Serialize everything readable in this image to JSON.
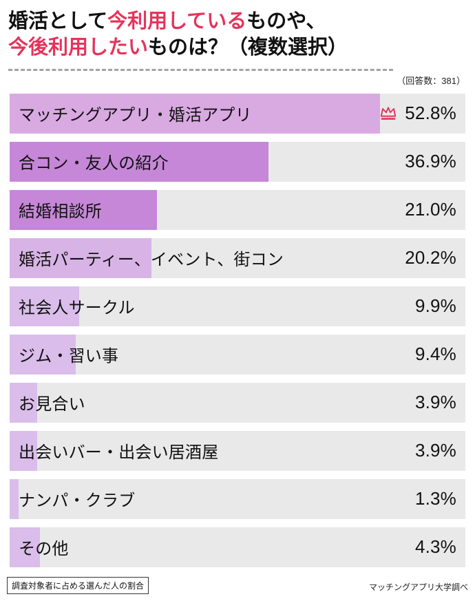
{
  "colors": {
    "accent": "#e5345b",
    "track": "#e9e9ea",
    "text": "#111111"
  },
  "title": {
    "line1": [
      {
        "text": "婚活として",
        "accent": false
      },
      {
        "text": "今利用している",
        "accent": true
      },
      {
        "text": "ものや、",
        "accent": false
      }
    ],
    "line2": [
      {
        "text": "今後利用したい",
        "accent": true
      },
      {
        "text": "ものは？（複数選択）",
        "accent": false
      }
    ]
  },
  "respondents_note": "（回答数：381）",
  "chart_data": {
    "type": "bar",
    "orientation": "horizontal",
    "title": "婚活として今利用しているものや、今後利用したいものは？（複数選択）",
    "respondents": 381,
    "axis_max": 65,
    "categories": [
      "マッチングアプリ・婚活アプリ",
      "合コン・友人の紹介",
      "結婚相談所",
      "婚活パーティー、イベント、街コン",
      "社会人サークル",
      "ジム・習い事",
      "お見合い",
      "出会いバー・出会い居酒屋",
      "ナンパ・クラブ",
      "その他"
    ],
    "values": [
      52.8,
      36.9,
      21.0,
      20.2,
      9.9,
      9.4,
      3.9,
      3.9,
      1.3,
      4.3
    ],
    "value_labels": [
      "52.8%",
      "36.9%",
      "21.0%",
      "20.2%",
      "9.9%",
      "9.4%",
      "3.9%",
      "3.9%",
      "1.3%",
      "4.3%"
    ],
    "bar_fills": [
      "#d9a9e2",
      "#c687d8",
      "#c687d8",
      "#d8b4e6",
      "#dabdea",
      "#dabdea",
      "#dabdea",
      "#dabdea",
      "#dabdea",
      "#dabdea"
    ],
    "track_color": "#e9e9ea",
    "top_item_marker": "crown-icon",
    "grid": false,
    "legend": "none"
  },
  "footer": {
    "left_note": "調査対象者に占める選んだ人の割合",
    "right_note": "マッチングアプリ大学調べ"
  }
}
